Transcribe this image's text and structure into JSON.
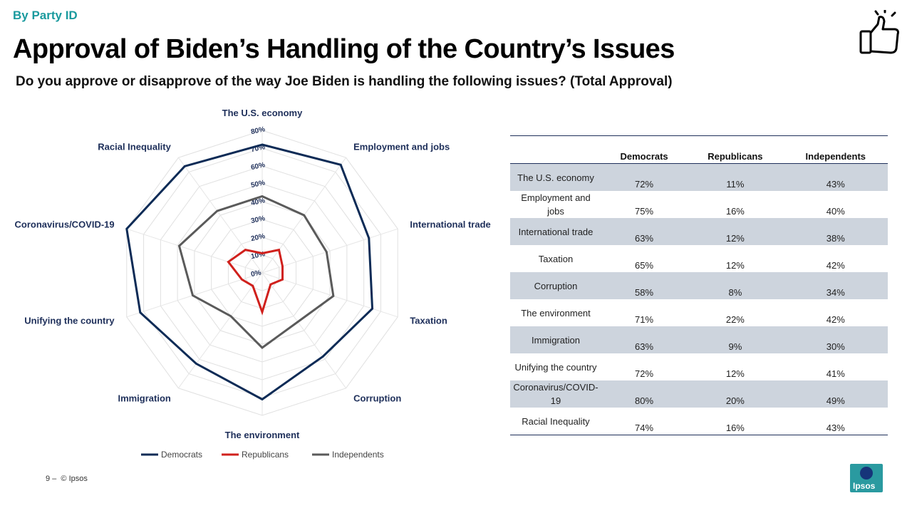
{
  "header": {
    "eyebrow": "By Party ID",
    "title": "Approval of Biden’s Handling of the Country’s Issues",
    "subtitle": "Do you approve or disapprove of the way Joe Biden is handling the following issues? (Total Approval)"
  },
  "chart_data": {
    "type": "radar",
    "categories": [
      "The U.S. economy",
      "Employment and jobs",
      "International trade",
      "Taxation",
      "Corruption",
      "The environment",
      "Immigration",
      "Unifying the country",
      "Coronavirus/COVID-19",
      "Racial Inequality"
    ],
    "series": [
      {
        "name": "Democrats",
        "values": [
          72,
          75,
          63,
          65,
          58,
          71,
          63,
          72,
          80,
          74
        ],
        "color": "#0d2b56"
      },
      {
        "name": "Republicans",
        "values": [
          11,
          16,
          12,
          12,
          8,
          22,
          9,
          12,
          20,
          16
        ],
        "color": "#d0201c"
      },
      {
        "name": "Independents",
        "values": [
          43,
          40,
          38,
          42,
          34,
          42,
          30,
          41,
          49,
          43
        ],
        "color": "#5a5a5a"
      }
    ],
    "rlim": [
      0,
      80
    ],
    "ticks": [
      "0%",
      "10%",
      "20%",
      "30%",
      "40%",
      "50%",
      "60%",
      "70%",
      "80%"
    ],
    "legend_position": "bottom"
  },
  "table": {
    "headers": [
      "",
      "Democrats",
      "Republicans",
      "Independents"
    ],
    "rows": [
      [
        "The U.S. economy",
        "72%",
        "11%",
        "43%"
      ],
      [
        "Employment and jobs",
        "75%",
        "16%",
        "40%"
      ],
      [
        "International trade",
        "63%",
        "12%",
        "38%"
      ],
      [
        "Taxation",
        "65%",
        "12%",
        "42%"
      ],
      [
        "Corruption",
        "58%",
        "8%",
        "34%"
      ],
      [
        "The environment",
        "71%",
        "22%",
        "42%"
      ],
      [
        "Immigration",
        "63%",
        "9%",
        "30%"
      ],
      [
        "Unifying the country",
        "72%",
        "12%",
        "41%"
      ],
      [
        "Coronavirus/COVID-19",
        "80%",
        "20%",
        "49%"
      ],
      [
        "Racial Inequality",
        "74%",
        "16%",
        "43%"
      ]
    ]
  },
  "footer": {
    "page": "9 –",
    "copyright": "© Ipsos"
  },
  "logo": {
    "text": "Ipsos"
  }
}
